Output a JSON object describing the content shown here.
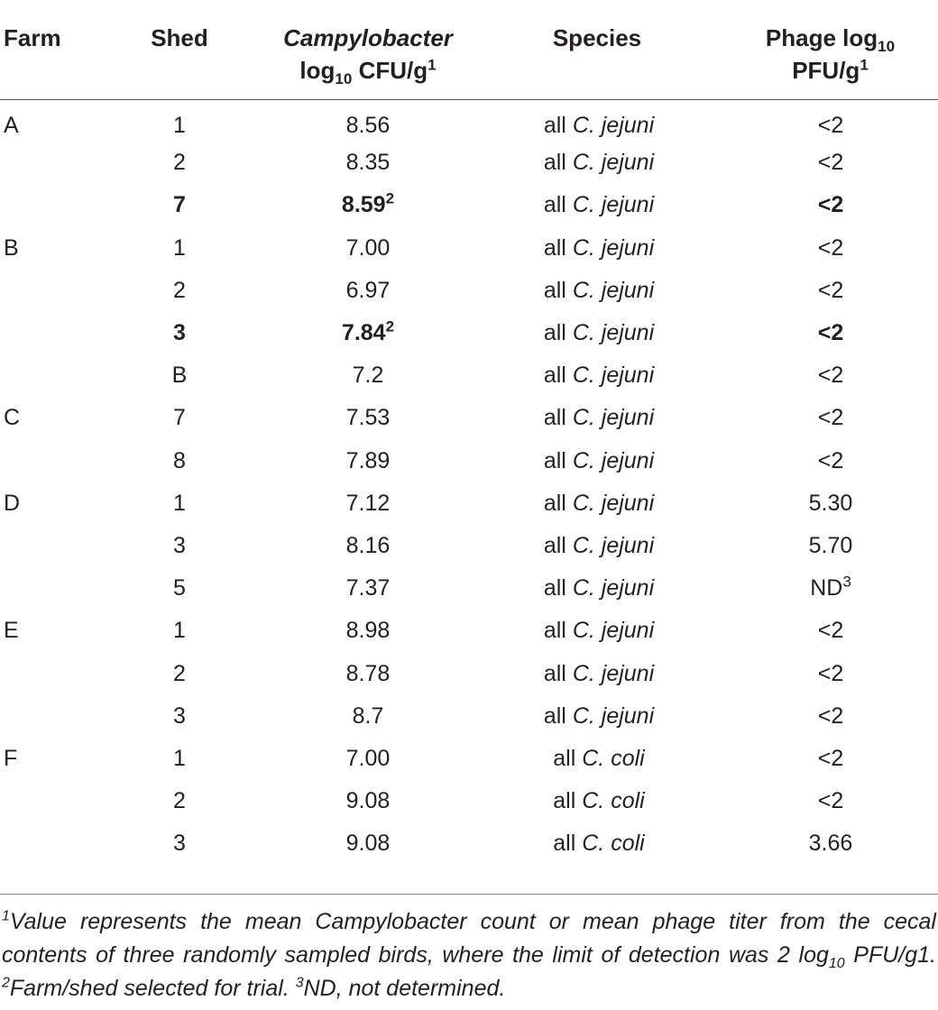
{
  "header": {
    "farm": "Farm",
    "shed": "Shed",
    "campylobacter": {
      "organism": "Campylobacter",
      "log": "log",
      "sub": "10",
      "unit": " CFU/g",
      "sup": "1"
    },
    "species": "Species",
    "phage": {
      "label": "Phage log",
      "sub": "10",
      "unit": "PFU/g",
      "sup": "1"
    }
  },
  "rows": [
    {
      "farm": "A",
      "shed": "1",
      "camp": "8.56",
      "camp_sup": "",
      "species_prefix": "all",
      "species_name": "C. jejuni",
      "phage": "<2",
      "phage_sup": "",
      "bold": false
    },
    {
      "farm": "",
      "shed": "2",
      "camp": "8.35",
      "camp_sup": "",
      "species_prefix": "all",
      "species_name": "C. jejuni",
      "phage": "<2",
      "phage_sup": "",
      "bold": false
    },
    {
      "farm": "",
      "shed": "7",
      "camp": "8.59",
      "camp_sup": "2",
      "species_prefix": "all",
      "species_name": "C. jejuni",
      "phage": "<2",
      "phage_sup": "",
      "bold": true
    },
    {
      "farm": "B",
      "shed": "1",
      "camp": "7.00",
      "camp_sup": "",
      "species_prefix": "all",
      "species_name": "C. jejuni",
      "phage": "<2",
      "phage_sup": "",
      "bold": false
    },
    {
      "farm": "",
      "shed": "2",
      "camp": "6.97",
      "camp_sup": "",
      "species_prefix": "all",
      "species_name": "C. jejuni",
      "phage": "<2",
      "phage_sup": "",
      "bold": false
    },
    {
      "farm": "",
      "shed": "3",
      "camp": "7.84",
      "camp_sup": "2",
      "species_prefix": "all",
      "species_name": "C. jejuni",
      "phage": "<2",
      "phage_sup": "",
      "bold": true
    },
    {
      "farm": "",
      "shed": "B",
      "camp": "7.2",
      "camp_sup": "",
      "species_prefix": "all",
      "species_name": "C. jejuni",
      "phage": "<2",
      "phage_sup": "",
      "bold": false
    },
    {
      "farm": "C",
      "shed": "7",
      "camp": "7.53",
      "camp_sup": "",
      "species_prefix": "all",
      "species_name": "C. jejuni",
      "phage": "<2",
      "phage_sup": "",
      "bold": false
    },
    {
      "farm": "",
      "shed": "8",
      "camp": "7.89",
      "camp_sup": "",
      "species_prefix": "all",
      "species_name": "C. jejuni",
      "phage": "<2",
      "phage_sup": "",
      "bold": false
    },
    {
      "farm": "D",
      "shed": "1",
      "camp": "7.12",
      "camp_sup": "",
      "species_prefix": "all",
      "species_name": "C. jejuni",
      "phage": "5.30",
      "phage_sup": "",
      "bold": false
    },
    {
      "farm": "",
      "shed": "3",
      "camp": "8.16",
      "camp_sup": "",
      "species_prefix": "all",
      "species_name": "C. jejuni",
      "phage": "5.70",
      "phage_sup": "",
      "bold": false
    },
    {
      "farm": "",
      "shed": "5",
      "camp": "7.37",
      "camp_sup": "",
      "species_prefix": "all",
      "species_name": "C. jejuni",
      "phage": "ND",
      "phage_sup": "3",
      "bold": false
    },
    {
      "farm": "E",
      "shed": "1",
      "camp": "8.98",
      "camp_sup": "",
      "species_prefix": "all",
      "species_name": "C. jejuni",
      "phage": "<2",
      "phage_sup": "",
      "bold": false
    },
    {
      "farm": "",
      "shed": "2",
      "camp": "8.78",
      "camp_sup": "",
      "species_prefix": "all",
      "species_name": "C. jejuni",
      "phage": "<2",
      "phage_sup": "",
      "bold": false
    },
    {
      "farm": "",
      "shed": "3",
      "camp": "8.7",
      "camp_sup": "",
      "species_prefix": "all",
      "species_name": "C. jejuni",
      "phage": "<2",
      "phage_sup": "",
      "bold": false
    },
    {
      "farm": "F",
      "shed": "1",
      "camp": "7.00",
      "camp_sup": "",
      "species_prefix": "all",
      "species_name": "C. coli",
      "phage": "<2",
      "phage_sup": "",
      "bold": false
    },
    {
      "farm": "",
      "shed": "2",
      "camp": "9.08",
      "camp_sup": "",
      "species_prefix": "all",
      "species_name": "C. coli",
      "phage": "<2",
      "phage_sup": "",
      "bold": false
    },
    {
      "farm": "",
      "shed": "3",
      "camp": "9.08",
      "camp_sup": "",
      "species_prefix": "all",
      "species_name": "C. coli",
      "phage": "3.66",
      "phage_sup": "",
      "bold": false
    }
  ],
  "footnote": {
    "n1_sup": "1",
    "n1_text": "Value represents the mean Campylobacter count or mean phage titer from the cecal contents of three randomly sampled birds, where the limit of detection was 2 log",
    "n1_sub": "10",
    "n1_tail": " PFU/g1. ",
    "n2_sup": "2",
    "n2_text": "Farm/shed selected for trial. ",
    "n3_sup": "3",
    "n3_text": "ND, not determined."
  }
}
